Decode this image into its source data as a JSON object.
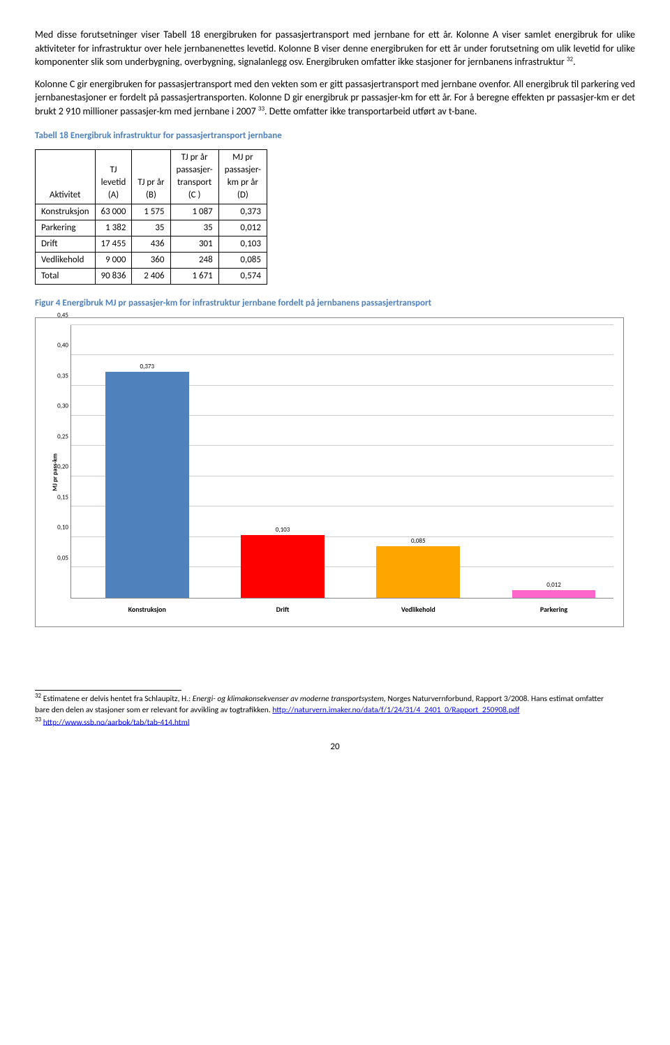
{
  "paragraphs": {
    "p1": "Med disse forutsetninger viser Tabell 18 energibruken for passasjertransport med jernbane for ett år. Kolonne A viser samlet energibruk for ulike aktiviteter for infrastruktur over hele jernbanenettes levetid. Kolonne B viser denne energibruken for ett år under forutsetning om ulik levetid for ulike komponenter slik som underbygning, overbygning, signalanlegg osv. Energibruken omfatter ikke stasjoner for jernbanens infrastruktur ",
    "p1_fn": "32",
    "p1_end": ".",
    "p2a": "Kolonne C gir energibruken for passasjertransport med den vekten som er gitt passasjertransport med jernbane ovenfor. All energibruk til parkering ved jernbanestasjoner er fordelt på passasjertransporten. Kolonne D gir energibruk pr passasjer-km for ett år. For å beregne effekten pr passasjer-km er det brukt 2 910 millioner passasjer-km med jernbane i 2007 ",
    "p2_fn": "33",
    "p2b": ". Dette omfatter ikke transportarbeid utført av t-bane."
  },
  "table": {
    "caption": "Tabell 18 Energibruk infrastruktur for passasjertransport jernbane",
    "headers": {
      "c0": "Aktivitet",
      "c1a": "TJ",
      "c1b": "levetid",
      "c1c": "(A)",
      "c2a": "TJ pr år",
      "c2b": "(B)",
      "c3a": "TJ pr år",
      "c3b": "passasjer-",
      "c3c": "transport",
      "c3d": "(C )",
      "c4a": "MJ pr",
      "c4b": "passasjer-",
      "c4c": "km pr år",
      "c4d": "(D)"
    },
    "rows": [
      {
        "a": "Konstruksjon",
        "b": "63 000",
        "c": "1 575",
        "d": "1 087",
        "e": "0,373"
      },
      {
        "a": "Parkering",
        "b": "1 382",
        "c": "35",
        "d": "35",
        "e": "0,012"
      },
      {
        "a": "Drift",
        "b": "17 455",
        "c": "436",
        "d": "301",
        "e": "0,103"
      },
      {
        "a": "Vedlikehold",
        "b": "9 000",
        "c": "360",
        "d": "248",
        "e": "0,085"
      },
      {
        "a": "Total",
        "b": "90 836",
        "c": "2 406",
        "d": "1 671",
        "e": "0,574"
      }
    ]
  },
  "figure": {
    "caption": "Figur 4 Energibruk MJ pr passasjer-km for infrastruktur jernbane fordelt på jernbanens passasjertransport",
    "ylabel": "MJ pr pass-km",
    "ylim_max": 0.45,
    "ytick_step": 0.05,
    "yticks": [
      "0,05",
      "0,10",
      "0,15",
      "0,20",
      "0,25",
      "0,30",
      "0,35",
      "0,40",
      "0,45"
    ],
    "grid_color": "#cccccc",
    "background": "#ffffff",
    "bars": [
      {
        "label": "Konstruksjon",
        "value": 0.373,
        "value_label": "0,373",
        "color": "#4f81bd"
      },
      {
        "label": "Drift",
        "value": 0.103,
        "value_label": "0,103",
        "color": "#ff0000"
      },
      {
        "label": "Vedlikehold",
        "value": 0.085,
        "value_label": "0,085",
        "color": "#ffa500"
      },
      {
        "label": "Parkering",
        "value": 0.012,
        "value_label": "0,012",
        "color": "#ff66cc"
      }
    ]
  },
  "footnotes": {
    "fn32_num": "32",
    "fn32_a": " Estimatene er delvis hentet fra Schlaupitz, H.: ",
    "fn32_i": "Energi- og klimakonsekvenser av moderne transportsystem,",
    "fn32_b": " Norges Naturvernforbund, Rapport 3/2008. Hans estimat omfatter bare den delen av stasjoner som er relevant for avvikling av togtrafikken. ",
    "fn32_link": "http://naturvern.imaker.no/data/f/1/24/31/4_2401_0/Rapport_250908.pdf",
    "fn33_num": "33",
    "fn33_a": " ",
    "fn33_link": "http://www.ssb.no/aarbok/tab/tab-414.html"
  },
  "pagenum": "20"
}
